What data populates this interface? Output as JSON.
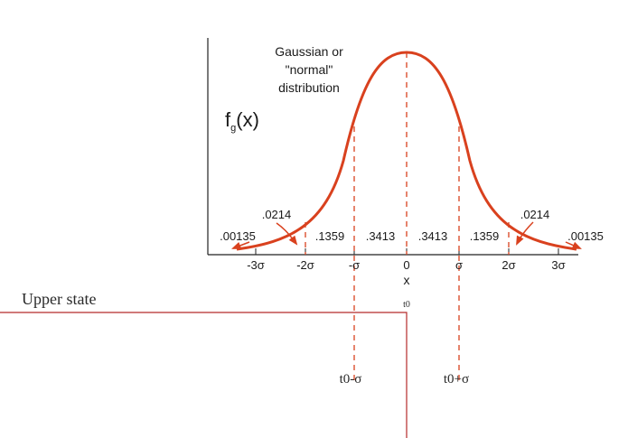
{
  "diagram": {
    "title_lines": [
      "Gaussian or",
      "\"normal\"",
      "distribution"
    ],
    "y_axis_label": "f",
    "y_axis_label_subscript": "g",
    "y_axis_label_suffix": "(x)",
    "x_axis_label": "x",
    "x_ticks": [
      "-3σ",
      "-2σ",
      "-σ",
      "0",
      "σ",
      "2σ",
      "3σ"
    ],
    "region_probabilities": [
      ".00135",
      ".1359",
      ".3413",
      ".3413",
      ".1359",
      ".00135"
    ],
    "arrow_labels": [
      ".0214",
      ".0214"
    ],
    "curve_color": "#d9411e",
    "state_line_color": "#b52a2a"
  },
  "state_plot": {
    "upper_state_label": "Upper state",
    "t0_label": "t0",
    "t_minus_label": "t0-σ",
    "t_plus_label": "t0+σ"
  }
}
